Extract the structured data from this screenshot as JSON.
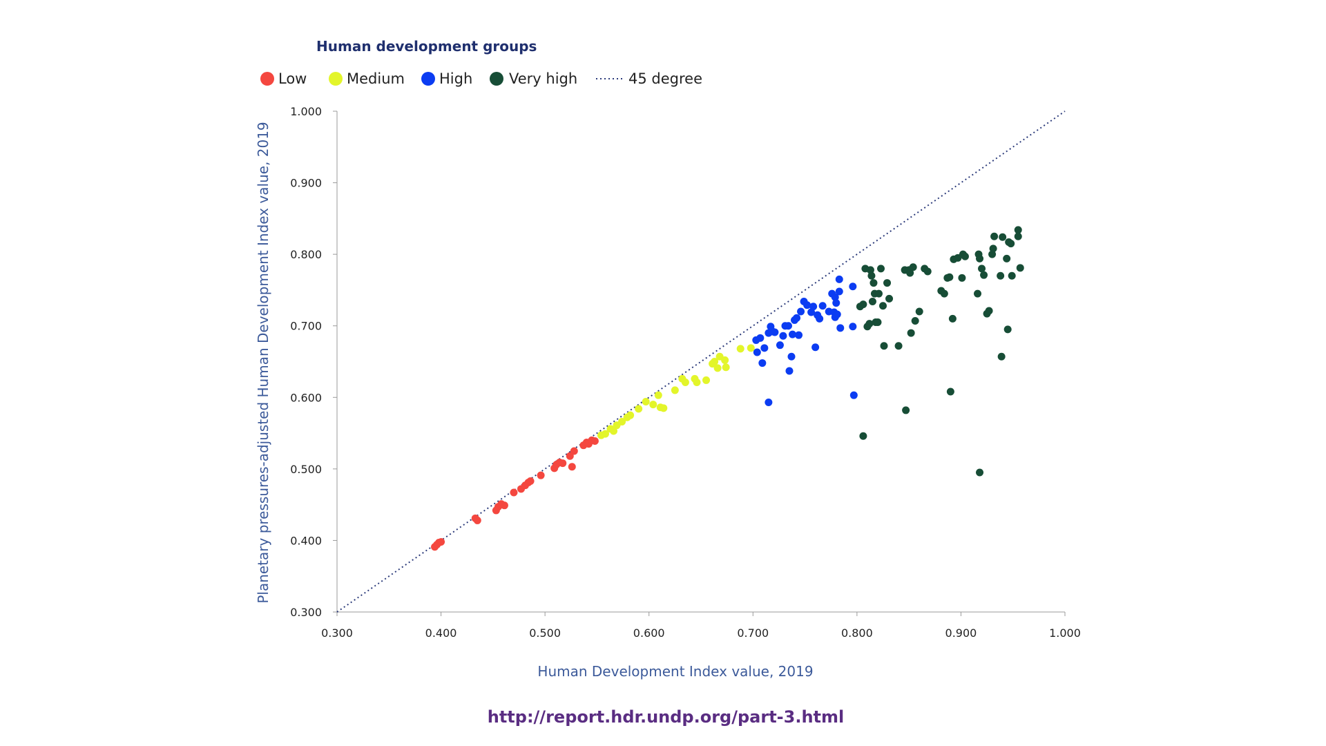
{
  "chart_data": {
    "type": "scatter",
    "legend_title": "Human development groups",
    "legend_placement": "top-left",
    "xlabel": "Human Development Index value, 2019",
    "ylabel": "Planetary pressures-adjusted Human Development Index value, 2019",
    "xlim": [
      0.3,
      1.0
    ],
    "ylim": [
      0.3,
      1.0
    ],
    "xticks": [
      "0.300",
      "0.400",
      "0.500",
      "0.600",
      "0.700",
      "0.800",
      "0.900",
      "1.000"
    ],
    "yticks": [
      "0.300",
      "0.400",
      "0.500",
      "0.600",
      "0.700",
      "0.800",
      "0.900",
      "1.000"
    ],
    "grid": false,
    "reference_line": {
      "name": "45 degree",
      "style": "dotted",
      "color": "#2b3a7a",
      "from": [
        0.3,
        0.3
      ],
      "to": [
        1.0,
        1.0
      ]
    },
    "series": [
      {
        "name": "Low",
        "color": "#f4473f",
        "points": [
          [
            0.394,
            0.391
          ],
          [
            0.396,
            0.394
          ],
          [
            0.398,
            0.397
          ],
          [
            0.4,
            0.398
          ],
          [
            0.433,
            0.431
          ],
          [
            0.435,
            0.428
          ],
          [
            0.453,
            0.442
          ],
          [
            0.455,
            0.447
          ],
          [
            0.458,
            0.451
          ],
          [
            0.461,
            0.449
          ],
          [
            0.47,
            0.467
          ],
          [
            0.477,
            0.472
          ],
          [
            0.481,
            0.477
          ],
          [
            0.484,
            0.481
          ],
          [
            0.486,
            0.483
          ],
          [
            0.496,
            0.491
          ],
          [
            0.509,
            0.501
          ],
          [
            0.511,
            0.506
          ],
          [
            0.514,
            0.509
          ],
          [
            0.517,
            0.508
          ],
          [
            0.524,
            0.518
          ],
          [
            0.526,
            0.503
          ],
          [
            0.528,
            0.525
          ],
          [
            0.537,
            0.533
          ],
          [
            0.54,
            0.537
          ],
          [
            0.542,
            0.535
          ],
          [
            0.545,
            0.54
          ],
          [
            0.548,
            0.539
          ]
        ]
      },
      {
        "name": "Medium",
        "color": "#e3f52a",
        "points": [
          [
            0.554,
            0.547
          ],
          [
            0.558,
            0.549
          ],
          [
            0.563,
            0.556
          ],
          [
            0.566,
            0.553
          ],
          [
            0.569,
            0.561
          ],
          [
            0.574,
            0.566
          ],
          [
            0.579,
            0.572
          ],
          [
            0.582,
            0.575
          ],
          [
            0.59,
            0.584
          ],
          [
            0.597,
            0.594
          ],
          [
            0.604,
            0.59
          ],
          [
            0.609,
            0.603
          ],
          [
            0.611,
            0.586
          ],
          [
            0.614,
            0.585
          ],
          [
            0.625,
            0.61
          ],
          [
            0.632,
            0.626
          ],
          [
            0.635,
            0.621
          ],
          [
            0.644,
            0.626
          ],
          [
            0.646,
            0.621
          ],
          [
            0.655,
            0.624
          ],
          [
            0.661,
            0.647
          ],
          [
            0.663,
            0.65
          ],
          [
            0.666,
            0.641
          ],
          [
            0.668,
            0.657
          ],
          [
            0.673,
            0.652
          ],
          [
            0.674,
            0.642
          ],
          [
            0.688,
            0.668
          ],
          [
            0.698,
            0.669
          ]
        ]
      },
      {
        "name": "High",
        "color": "#0b3cf2",
        "points": [
          [
            0.703,
            0.68
          ],
          [
            0.704,
            0.663
          ],
          [
            0.707,
            0.683
          ],
          [
            0.709,
            0.648
          ],
          [
            0.711,
            0.669
          ],
          [
            0.715,
            0.69
          ],
          [
            0.715,
            0.593
          ],
          [
            0.717,
            0.699
          ],
          [
            0.719,
            0.692
          ],
          [
            0.721,
            0.691
          ],
          [
            0.726,
            0.673
          ],
          [
            0.729,
            0.686
          ],
          [
            0.731,
            0.7
          ],
          [
            0.734,
            0.7
          ],
          [
            0.735,
            0.637
          ],
          [
            0.737,
            0.657
          ],
          [
            0.738,
            0.688
          ],
          [
            0.74,
            0.708
          ],
          [
            0.742,
            0.711
          ],
          [
            0.744,
            0.687
          ],
          [
            0.746,
            0.72
          ],
          [
            0.749,
            0.734
          ],
          [
            0.752,
            0.729
          ],
          [
            0.756,
            0.719
          ],
          [
            0.758,
            0.727
          ],
          [
            0.76,
            0.67
          ],
          [
            0.762,
            0.715
          ],
          [
            0.764,
            0.71
          ],
          [
            0.767,
            0.728
          ],
          [
            0.773,
            0.72
          ],
          [
            0.776,
            0.745
          ],
          [
            0.778,
            0.719
          ],
          [
            0.779,
            0.74
          ],
          [
            0.779,
            0.712
          ],
          [
            0.78,
            0.732
          ],
          [
            0.781,
            0.716
          ],
          [
            0.783,
            0.765
          ],
          [
            0.783,
            0.748
          ],
          [
            0.784,
            0.697
          ],
          [
            0.796,
            0.755
          ],
          [
            0.796,
            0.699
          ],
          [
            0.797,
            0.603
          ]
        ]
      },
      {
        "name": "Very high",
        "color": "#174d36",
        "points": [
          [
            0.803,
            0.727
          ],
          [
            0.806,
            0.73
          ],
          [
            0.806,
            0.546
          ],
          [
            0.808,
            0.78
          ],
          [
            0.81,
            0.699
          ],
          [
            0.812,
            0.703
          ],
          [
            0.813,
            0.778
          ],
          [
            0.814,
            0.77
          ],
          [
            0.815,
            0.734
          ],
          [
            0.816,
            0.76
          ],
          [
            0.817,
            0.745
          ],
          [
            0.818,
            0.705
          ],
          [
            0.82,
            0.705
          ],
          [
            0.821,
            0.745
          ],
          [
            0.823,
            0.78
          ],
          [
            0.825,
            0.728
          ],
          [
            0.826,
            0.672
          ],
          [
            0.829,
            0.76
          ],
          [
            0.831,
            0.738
          ],
          [
            0.84,
            0.672
          ],
          [
            0.846,
            0.778
          ],
          [
            0.847,
            0.582
          ],
          [
            0.85,
            0.778
          ],
          [
            0.851,
            0.774
          ],
          [
            0.852,
            0.69
          ],
          [
            0.854,
            0.782
          ],
          [
            0.856,
            0.707
          ],
          [
            0.86,
            0.72
          ],
          [
            0.865,
            0.78
          ],
          [
            0.868,
            0.776
          ],
          [
            0.881,
            0.749
          ],
          [
            0.884,
            0.745
          ],
          [
            0.887,
            0.767
          ],
          [
            0.889,
            0.768
          ],
          [
            0.89,
            0.608
          ],
          [
            0.892,
            0.71
          ],
          [
            0.893,
            0.793
          ],
          [
            0.897,
            0.795
          ],
          [
            0.901,
            0.767
          ],
          [
            0.902,
            0.8
          ],
          [
            0.904,
            0.797
          ],
          [
            0.916,
            0.745
          ],
          [
            0.917,
            0.8
          ],
          [
            0.918,
            0.794
          ],
          [
            0.918,
            0.495
          ],
          [
            0.92,
            0.78
          ],
          [
            0.922,
            0.771
          ],
          [
            0.925,
            0.717
          ],
          [
            0.927,
            0.721
          ],
          [
            0.93,
            0.8
          ],
          [
            0.931,
            0.808
          ],
          [
            0.932,
            0.825
          ],
          [
            0.938,
            0.77
          ],
          [
            0.939,
            0.657
          ],
          [
            0.94,
            0.824
          ],
          [
            0.944,
            0.794
          ],
          [
            0.945,
            0.695
          ],
          [
            0.946,
            0.817
          ],
          [
            0.948,
            0.815
          ],
          [
            0.949,
            0.77
          ],
          [
            0.955,
            0.834
          ],
          [
            0.955,
            0.825
          ],
          [
            0.957,
            0.781
          ]
        ]
      }
    ]
  },
  "source_url": "http://report.hdr.undp.org/part-3.html",
  "colors": {
    "axis": "#999999",
    "legend_title": "#1f2f6e",
    "axis_title": "#3c5a9a",
    "source": "#5a2d82"
  }
}
